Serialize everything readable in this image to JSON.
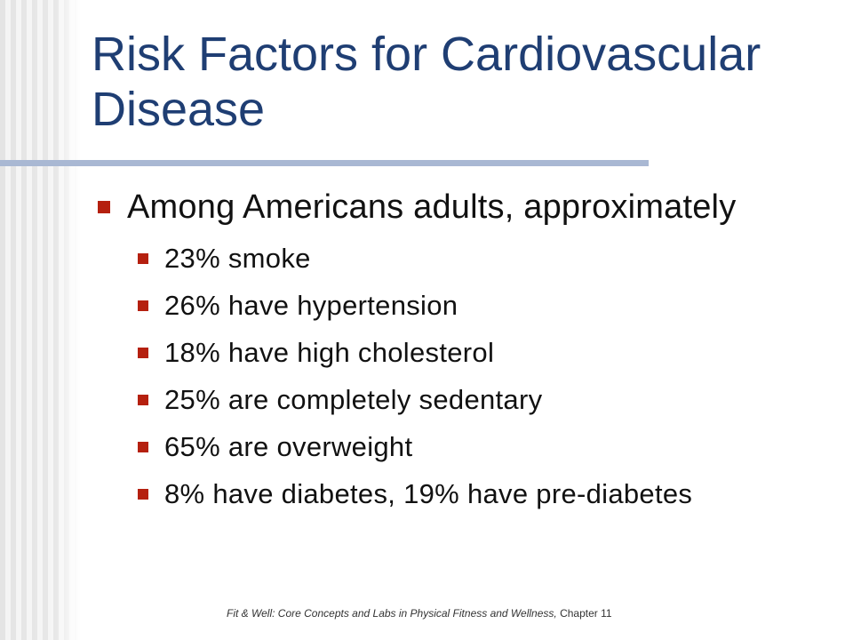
{
  "slide": {
    "title": "Risk Factors for Cardiovascular Disease",
    "main_point": "Among Americans adults, approximately",
    "sub_points": [
      "23% smoke",
      "26% have hypertension",
      "18% have high cholesterol",
      "25% are completely sedentary",
      "65% are overweight",
      "8% have diabetes, 19% have pre-diabetes"
    ],
    "footer": {
      "book_title": "Fit & Well: Core Concepts and Labs in Physical Fitness and Wellness,",
      "chapter": " Chapter 11"
    }
  },
  "colors": {
    "title": "#1f3e73",
    "bullet": "#b5200f",
    "rule": "#a9b8d3",
    "body_text": "#111111"
  }
}
